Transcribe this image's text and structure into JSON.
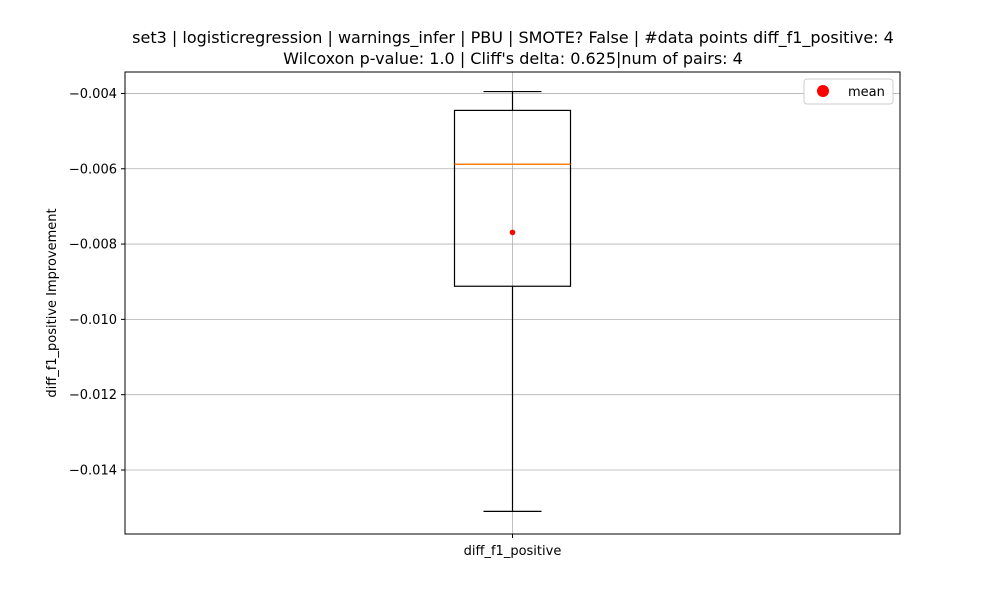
{
  "chart_data": {
    "type": "box",
    "title": "set3 | logisticregression | warnings_infer | PBU | SMOTE? False | #data points diff_f1_positive: 4",
    "subtitle": "Wilcoxon p-value: 1.0 | Cliff's delta: 0.625|num of pairs: 4",
    "xlabel": "",
    "ylabel": "diff_f1_positive Improvement",
    "categories": [
      "diff_f1_positive"
    ],
    "ylim": [
      -0.0157,
      -0.00343
    ],
    "yticks": [
      -0.004,
      -0.006,
      -0.008,
      -0.01,
      -0.012,
      -0.014
    ],
    "ytick_labels": [
      "−0.004",
      "−0.006",
      "−0.008",
      "−0.010",
      "−0.012",
      "−0.014"
    ],
    "grid": true,
    "legend": {
      "placement": "top-right",
      "entries": [
        "mean"
      ]
    },
    "boxes": [
      {
        "category": "diff_f1_positive",
        "whisker_low": -0.0151,
        "q1": -0.00912,
        "median": -0.00588,
        "q3": -0.00445,
        "whisker_high": -0.00395,
        "mean": -0.00769
      }
    ],
    "colors": {
      "box": "#000000",
      "median": "#ff7f0e",
      "mean": "#ff0000",
      "grid": "#b0b0b0"
    }
  }
}
